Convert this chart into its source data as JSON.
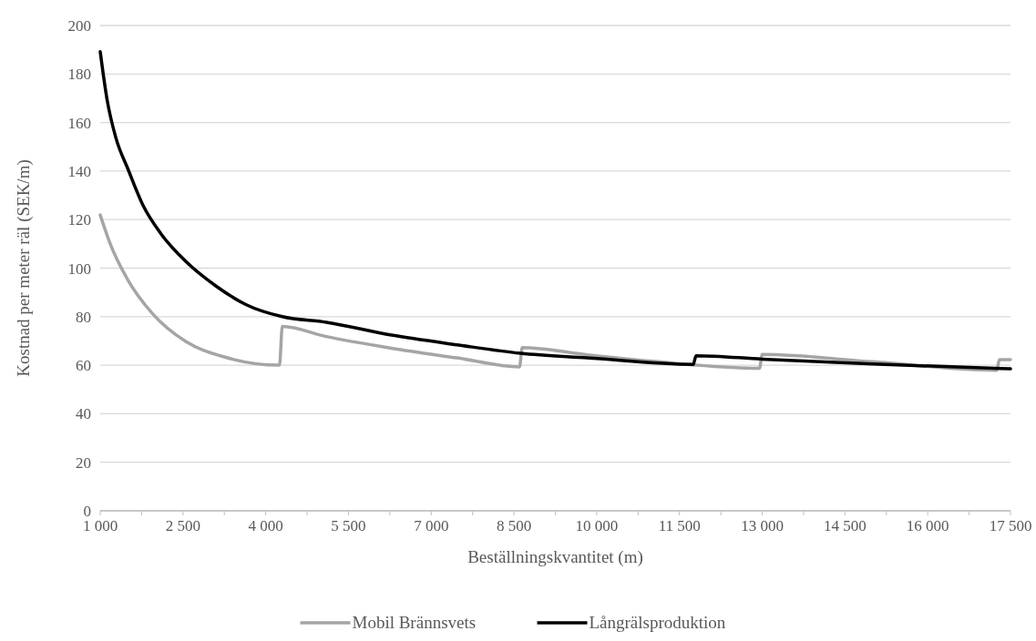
{
  "chart_data": {
    "type": "line",
    "xlabel": "Beställningskvantitet (m)",
    "ylabel": "Kostnad per meter räl (SEK/m)",
    "xlim": [
      1000,
      17500
    ],
    "xticks": [
      {
        "value": 1000,
        "label": "1 000"
      },
      {
        "value": 1750,
        "label": null
      },
      {
        "value": 2500,
        "label": "2 500"
      },
      {
        "value": 3250,
        "label": null
      },
      {
        "value": 4000,
        "label": "4 000"
      },
      {
        "value": 4750,
        "label": null
      },
      {
        "value": 5500,
        "label": "5 500"
      },
      {
        "value": 6250,
        "label": null
      },
      {
        "value": 7000,
        "label": "7 000"
      },
      {
        "value": 7750,
        "label": null
      },
      {
        "value": 8500,
        "label": "8 500"
      },
      {
        "value": 9250,
        "label": null
      },
      {
        "value": 10000,
        "label": "10 000"
      },
      {
        "value": 10750,
        "label": null
      },
      {
        "value": 11500,
        "label": "11 500"
      },
      {
        "value": 12250,
        "label": null
      },
      {
        "value": 13000,
        "label": "13 000"
      },
      {
        "value": 13750,
        "label": null
      },
      {
        "value": 14500,
        "label": "14 500"
      },
      {
        "value": 15250,
        "label": null
      },
      {
        "value": 16000,
        "label": "16 000"
      },
      {
        "value": 16750,
        "label": null
      },
      {
        "value": 17500,
        "label": "17 500"
      }
    ],
    "ylim": [
      0,
      200
    ],
    "yticks": [
      0,
      20,
      40,
      60,
      80,
      100,
      120,
      140,
      160,
      180,
      200
    ],
    "grid": "y",
    "legend": "bottom",
    "marker": "none",
    "line_style": "solid",
    "series": [
      {
        "name": "Mobil Brännsvets",
        "color": "#a5a5a5",
        "x": [
          1000,
          1175,
          1500,
          1950,
          2550,
          3250,
          4250,
          4300,
          5100,
          6280,
          7470,
          8600,
          8650,
          9830,
          11020,
          12950,
          13000,
          15000,
          17250,
          17300,
          17500
        ],
        "values": [
          121.9,
          110.4,
          95.2,
          81.2,
          69.8,
          63.4,
          60.0,
          76.0,
          71.8,
          67.0,
          63.0,
          59.3,
          67.3,
          64.3,
          61.6,
          58.7,
          64.4,
          61.4,
          57.9,
          62.3,
          62.3
        ]
      },
      {
        "name": "Långrälsproduktion",
        "color": "#000000",
        "x": [
          1000,
          1120,
          1285,
          1500,
          1780,
          2100,
          2550,
          3100,
          3640,
          4300,
          5100,
          6280,
          7470,
          8620,
          9830,
          11750,
          11800,
          13000,
          15000,
          17500
        ],
        "values": [
          189.2,
          170.0,
          153.6,
          141.0,
          125.7,
          114.2,
          102.8,
          92.6,
          85.0,
          80.0,
          77.7,
          72.4,
          68.4,
          64.9,
          63.0,
          60.3,
          63.9,
          62.5,
          60.5,
          58.5
        ]
      }
    ]
  }
}
